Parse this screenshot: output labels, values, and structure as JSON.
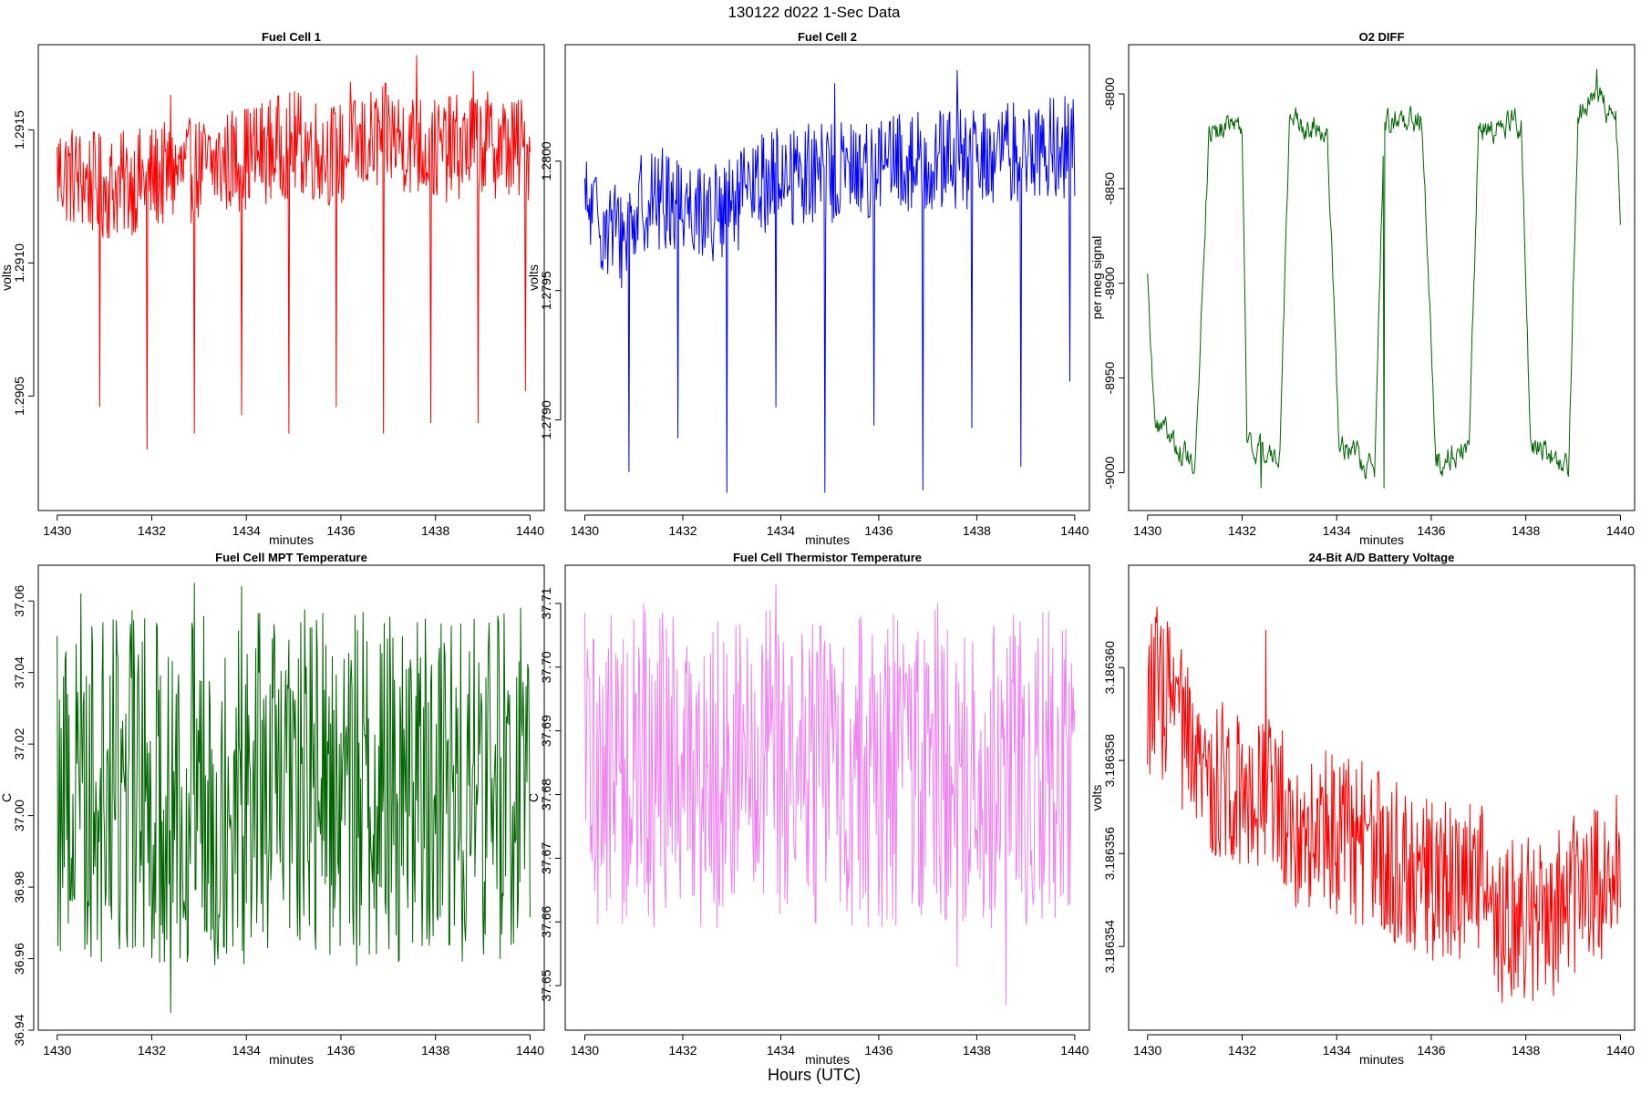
{
  "figure": {
    "title": "130122   d022   1-Sec Data",
    "x_label": "Hours (UTC)"
  },
  "chart_data": [
    {
      "type": "line",
      "title": "Fuel Cell 1",
      "xlabel": "minutes",
      "ylabel": "volts",
      "color": "#ff0000",
      "xlim": [
        1429.6,
        1440.3
      ],
      "ylim": [
        1.29007,
        1.29182
      ],
      "xticks": [
        1430,
        1432,
        1434,
        1436,
        1438,
        1440
      ],
      "xtick_labels": [
        "1430",
        "1432",
        "1434",
        "1436",
        "1438",
        "1440"
      ],
      "yticks": [
        1.2905,
        1.291,
        1.2915
      ],
      "ytick_labels": [
        "1.2905",
        "1.2910",
        "1.2915"
      ],
      "baseline": [
        [
          1430,
          1.29135
        ],
        [
          1431,
          1.29128
        ],
        [
          1432,
          1.29132
        ],
        [
          1433,
          1.29135
        ],
        [
          1434,
          1.2914
        ],
        [
          1435,
          1.29145
        ],
        [
          1436,
          1.2914
        ],
        [
          1437,
          1.29148
        ],
        [
          1438,
          1.29142
        ],
        [
          1439,
          1.29145
        ],
        [
          1440,
          1.29142
        ]
      ],
      "noise": 0.0002,
      "spikes": [
        [
          1430.9,
          1.29046
        ],
        [
          1431.9,
          1.2903
        ],
        [
          1432.9,
          1.29036
        ],
        [
          1433.9,
          1.29043
        ],
        [
          1434.9,
          1.29036
        ],
        [
          1435.9,
          1.29046
        ],
        [
          1436.9,
          1.29036
        ],
        [
          1437.9,
          1.2904
        ],
        [
          1438.9,
          1.2904
        ],
        [
          1439.9,
          1.29052
        ]
      ],
      "peaks": [
        [
          1437.6,
          1.29178
        ],
        [
          1436.2,
          1.29168
        ],
        [
          1438.8,
          1.29172
        ],
        [
          1432.4,
          1.29163
        ]
      ]
    },
    {
      "type": "line",
      "title": "Fuel Cell 2",
      "xlabel": "minutes",
      "ylabel": "volts",
      "color": "#0000ff",
      "xlim": [
        1429.6,
        1440.3
      ],
      "ylim": [
        1.27865,
        1.28045
      ],
      "xticks": [
        1430,
        1432,
        1434,
        1436,
        1438,
        1440
      ],
      "xtick_labels": [
        "1430",
        "1432",
        "1434",
        "1436",
        "1438",
        "1440"
      ],
      "yticks": [
        1.279,
        1.2795,
        1.28
      ],
      "ytick_labels": [
        "1.2790",
        "1.2795",
        "1.2800"
      ],
      "baseline": [
        [
          1430,
          1.27982
        ],
        [
          1430.8,
          1.2797
        ],
        [
          1431.2,
          1.27985
        ],
        [
          1432,
          1.27985
        ],
        [
          1432.8,
          1.27978
        ],
        [
          1433.5,
          1.2799
        ],
        [
          1434,
          1.27995
        ],
        [
          1435,
          1.27995
        ],
        [
          1436,
          1.27998
        ],
        [
          1437,
          1.28
        ],
        [
          1438,
          1.28
        ],
        [
          1439,
          1.28005
        ],
        [
          1440,
          1.28005
        ]
      ],
      "noise": 0.0002,
      "spikes": [
        [
          1430.9,
          1.2788
        ],
        [
          1431.9,
          1.27893
        ],
        [
          1432.9,
          1.27872
        ],
        [
          1433.9,
          1.27905
        ],
        [
          1434.9,
          1.27872
        ],
        [
          1435.9,
          1.27898
        ],
        [
          1436.9,
          1.27873
        ],
        [
          1437.9,
          1.27897
        ],
        [
          1438.9,
          1.27882
        ],
        [
          1439.9,
          1.27915
        ]
      ],
      "peaks": [
        [
          1437.6,
          1.28035
        ],
        [
          1435.1,
          1.2803
        ],
        [
          1439.8,
          1.28025
        ]
      ]
    },
    {
      "type": "line",
      "title": "O2 DIFF",
      "xlabel": "minutes",
      "ylabel": "per meg signal",
      "color": "#006400",
      "xlim": [
        1429.6,
        1440.3
      ],
      "ylim": [
        -9020,
        -8774
      ],
      "xticks": [
        1430,
        1432,
        1434,
        1436,
        1438,
        1440
      ],
      "xtick_labels": [
        "1430",
        "1432",
        "1434",
        "1436",
        "1438",
        "1440"
      ],
      "yticks": [
        -9000,
        -8950,
        -8900,
        -8850,
        -8800
      ],
      "ytick_labels": [
        "-9000",
        "-8950",
        "-8900",
        "-8850",
        "-8800"
      ],
      "baseline": [
        [
          1430,
          -8898
        ],
        [
          1430.15,
          -8975
        ],
        [
          1430.5,
          -8983
        ],
        [
          1431,
          -8995
        ],
        [
          1431.3,
          -8820
        ],
        [
          1432,
          -8815
        ],
        [
          1432.1,
          -8985
        ],
        [
          1432.8,
          -8993
        ],
        [
          1433.0,
          -8815
        ],
        [
          1433.8,
          -8818
        ],
        [
          1434.05,
          -8985
        ],
        [
          1434.8,
          -8998
        ],
        [
          1435.0,
          -8815
        ],
        [
          1435.8,
          -8812
        ],
        [
          1436.1,
          -8995
        ],
        [
          1436.8,
          -8985
        ],
        [
          1437.0,
          -8818
        ],
        [
          1437.9,
          -8815
        ],
        [
          1438.1,
          -8985
        ],
        [
          1438.9,
          -8995
        ],
        [
          1439.1,
          -8812
        ],
        [
          1439.5,
          -8800
        ],
        [
          1439.9,
          -8815
        ],
        [
          1440,
          -8860
        ]
      ],
      "noise": 7,
      "spikes": [],
      "peaks": [
        [
          1439.5,
          -8787
        ],
        [
          1435.0,
          -9008
        ],
        [
          1432.4,
          -9008
        ]
      ]
    },
    {
      "type": "line",
      "title": "Fuel Cell MPT Temperature",
      "xlabel": "minutes",
      "ylabel": "C",
      "color": "#006400",
      "xlim": [
        1429.6,
        1440.3
      ],
      "ylim": [
        36.94,
        37.07
      ],
      "xticks": [
        1430,
        1432,
        1434,
        1436,
        1438,
        1440
      ],
      "xtick_labels": [
        "1430",
        "1432",
        "1434",
        "1436",
        "1438",
        "1440"
      ],
      "yticks": [
        36.94,
        36.96,
        36.98,
        37.0,
        37.02,
        37.04,
        37.06
      ],
      "ytick_labels": [
        "36.94",
        "36.96",
        "36.98",
        "37.00",
        "37.02",
        "37.04",
        "37.06"
      ],
      "baseline": [
        [
          1430,
          37.008
        ],
        [
          1440,
          37.008
        ]
      ],
      "noise": 0.05,
      "spikes": [
        [
          1432.4,
          36.945
        ]
      ],
      "peaks": [
        [
          1430.5,
          37.062
        ],
        [
          1432.9,
          37.065
        ],
        [
          1433.9,
          37.064
        ],
        [
          1439.8,
          37.058
        ]
      ]
    },
    {
      "type": "line",
      "title": "Fuel Cell Thermistor Temperature",
      "xlabel": "minutes",
      "ylabel": "C",
      "color": "#ee82ee",
      "xlim": [
        1429.6,
        1440.3
      ],
      "ylim": [
        37.643,
        37.716
      ],
      "xticks": [
        1430,
        1432,
        1434,
        1436,
        1438,
        1440
      ],
      "xtick_labels": [
        "1430",
        "1432",
        "1434",
        "1436",
        "1438",
        "1440"
      ],
      "yticks": [
        37.65,
        37.66,
        37.67,
        37.68,
        37.69,
        37.7,
        37.71
      ],
      "ytick_labels": [
        "37.65",
        "37.66",
        "37.67",
        "37.68",
        "37.69",
        "37.70",
        "37.71"
      ],
      "baseline": [
        [
          1430,
          37.684
        ],
        [
          1440,
          37.684
        ]
      ],
      "noise": 0.025,
      "spikes": [
        [
          1437.6,
          37.653
        ],
        [
          1438.6,
          37.647
        ],
        [
          1431.3,
          37.661
        ]
      ],
      "peaks": [
        [
          1433.9,
          37.713
        ],
        [
          1431.2,
          37.71
        ],
        [
          1437.2,
          37.71
        ]
      ]
    },
    {
      "type": "line",
      "title": "24-Bit A/D Battery Voltage",
      "xlabel": "minutes",
      "ylabel": "volts",
      "color": "#ff0000",
      "xlim": [
        1429.6,
        1440.3
      ],
      "ylim": [
        3.1863522,
        3.1863622
      ],
      "xticks": [
        1430,
        1432,
        1434,
        1436,
        1438,
        1440
      ],
      "xtick_labels": [
        "1430",
        "1432",
        "1434",
        "1436",
        "1438",
        "1440"
      ],
      "yticks": [
        3.186354,
        3.186356,
        3.186358,
        3.18636
      ],
      "ytick_labels": [
        "3.186354",
        "3.186356",
        "3.186358",
        "3.186360"
      ],
      "baseline": [
        [
          1430,
          3.1863595
        ],
        [
          1430.6,
          3.1863592
        ],
        [
          1431,
          3.1863576
        ],
        [
          1431.6,
          3.1863575
        ],
        [
          1432.5,
          3.1863575
        ],
        [
          1433.2,
          3.1863565
        ],
        [
          1434,
          3.1863565
        ],
        [
          1435.3,
          3.1863558
        ],
        [
          1436.2,
          3.1863553
        ],
        [
          1437,
          3.1863556
        ],
        [
          1437.5,
          3.1863545
        ],
        [
          1438.5,
          3.1863546
        ],
        [
          1439.3,
          3.1863553
        ],
        [
          1440,
          3.1863558
        ]
      ],
      "noise": 1.8e-06,
      "spikes": [
        [
          1437.5,
          3.1863528
        ]
      ],
      "peaks": [
        [
          1430.2,
          3.1863613
        ],
        [
          1432.5,
          3.1863608
        ]
      ]
    }
  ]
}
